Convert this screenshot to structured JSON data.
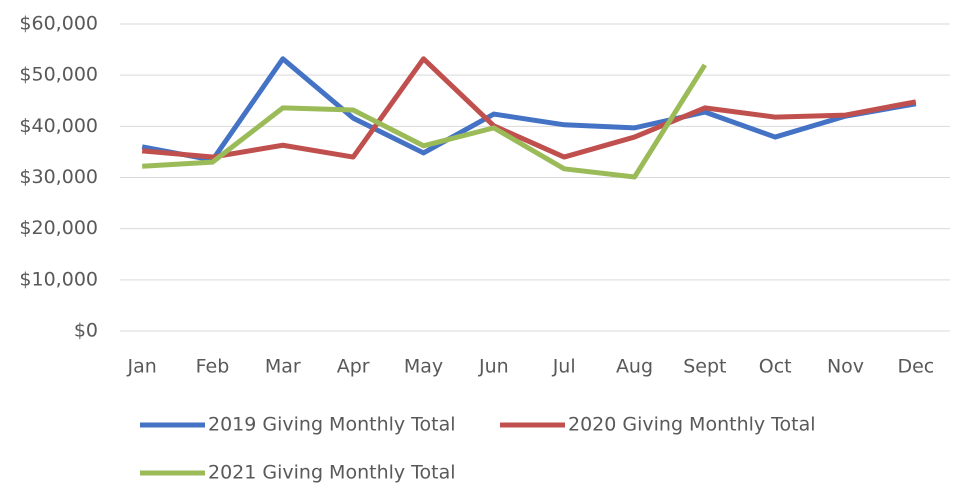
{
  "chart_data": {
    "type": "line",
    "categories": [
      "Jan",
      "Feb",
      "Mar",
      "Apr",
      "May",
      "Jun",
      "Jul",
      "Aug",
      "Sept",
      "Oct",
      "Nov",
      "Dec"
    ],
    "series": [
      {
        "name": "2019 Giving Monthly Total",
        "color": "#4472c4",
        "values": [
          36000,
          33400,
          53200,
          41600,
          34800,
          42400,
          40300,
          39700,
          42800,
          37900,
          42000,
          44400
        ]
      },
      {
        "name": "2020 Giving Monthly Total",
        "color": "#c0504d",
        "values": [
          35200,
          34000,
          36300,
          34000,
          53200,
          40100,
          34000,
          37900,
          43600,
          41800,
          42200,
          44800
        ]
      },
      {
        "name": "2021 Giving Monthly Total",
        "color": "#9bbb59",
        "values": [
          32200,
          33000,
          43600,
          43200,
          36200,
          39700,
          31700,
          30100,
          52000,
          null,
          null,
          null
        ]
      }
    ],
    "ylim": [
      0,
      60000
    ],
    "yticks": [
      {
        "value": 0,
        "label": "$0"
      },
      {
        "value": 10000,
        "label": "$10,000"
      },
      {
        "value": 20000,
        "label": "$20,000"
      },
      {
        "value": 30000,
        "label": "$30,000"
      },
      {
        "value": 40000,
        "label": "$40,000"
      },
      {
        "value": 50000,
        "label": "$50,000"
      },
      {
        "value": 60000,
        "label": "$60,000"
      }
    ],
    "grid": true,
    "legend": "bottom"
  }
}
